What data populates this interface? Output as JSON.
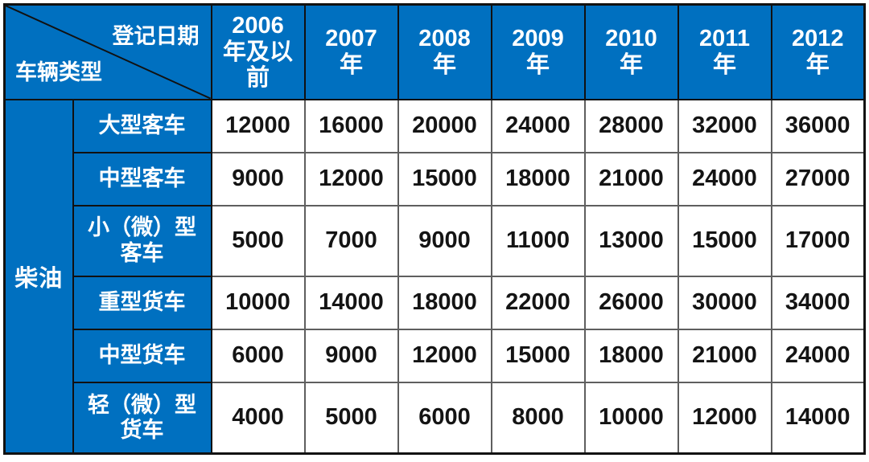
{
  "accent_color": "#0070C0",
  "table": {
    "corner": {
      "top_label": "登记日期",
      "bottom_label": "车辆类型"
    },
    "columns": [
      "2006\n年及以\n前",
      "2007\n年",
      "2008\n年",
      "2009\n年",
      "2010\n年",
      "2011\n年",
      "2012\n年"
    ],
    "fuel_group_label": "柴油",
    "rows": [
      {
        "label": "大型客车",
        "values": [
          "12000",
          "16000",
          "20000",
          "24000",
          "28000",
          "32000",
          "36000"
        ]
      },
      {
        "label": "中型客车",
        "values": [
          "9000",
          "12000",
          "15000",
          "18000",
          "21000",
          "24000",
          "27000"
        ]
      },
      {
        "label": "小（微）型\n客车",
        "values": [
          "5000",
          "7000",
          "9000",
          "11000",
          "13000",
          "15000",
          "17000"
        ]
      },
      {
        "label": "重型货车",
        "values": [
          "10000",
          "14000",
          "18000",
          "22000",
          "26000",
          "30000",
          "34000"
        ]
      },
      {
        "label": "中型货车",
        "values": [
          "6000",
          "9000",
          "12000",
          "15000",
          "18000",
          "21000",
          "24000"
        ]
      },
      {
        "label": "轻（微）型\n货车",
        "values": [
          "4000",
          "5000",
          "6000",
          "8000",
          "10000",
          "12000",
          "14000"
        ]
      }
    ]
  },
  "chart_data": {
    "type": "table",
    "row_axis_label": "车辆类型",
    "col_axis_label": "登记日期",
    "row_group": "柴油",
    "columns": [
      "2006年及以前",
      "2007年",
      "2008年",
      "2009年",
      "2010年",
      "2011年",
      "2012年"
    ],
    "rows": [
      {
        "category": "大型客车",
        "values": [
          12000,
          16000,
          20000,
          24000,
          28000,
          32000,
          36000
        ]
      },
      {
        "category": "中型客车",
        "values": [
          9000,
          12000,
          15000,
          18000,
          21000,
          24000,
          27000
        ]
      },
      {
        "category": "小（微）型客车",
        "values": [
          5000,
          7000,
          9000,
          11000,
          13000,
          15000,
          17000
        ]
      },
      {
        "category": "重型货车",
        "values": [
          10000,
          14000,
          18000,
          22000,
          26000,
          30000,
          34000
        ]
      },
      {
        "category": "中型货车",
        "values": [
          6000,
          9000,
          12000,
          15000,
          18000,
          21000,
          24000
        ]
      },
      {
        "category": "轻（微）型货车",
        "values": [
          4000,
          5000,
          6000,
          8000,
          10000,
          12000,
          14000
        ]
      }
    ]
  }
}
